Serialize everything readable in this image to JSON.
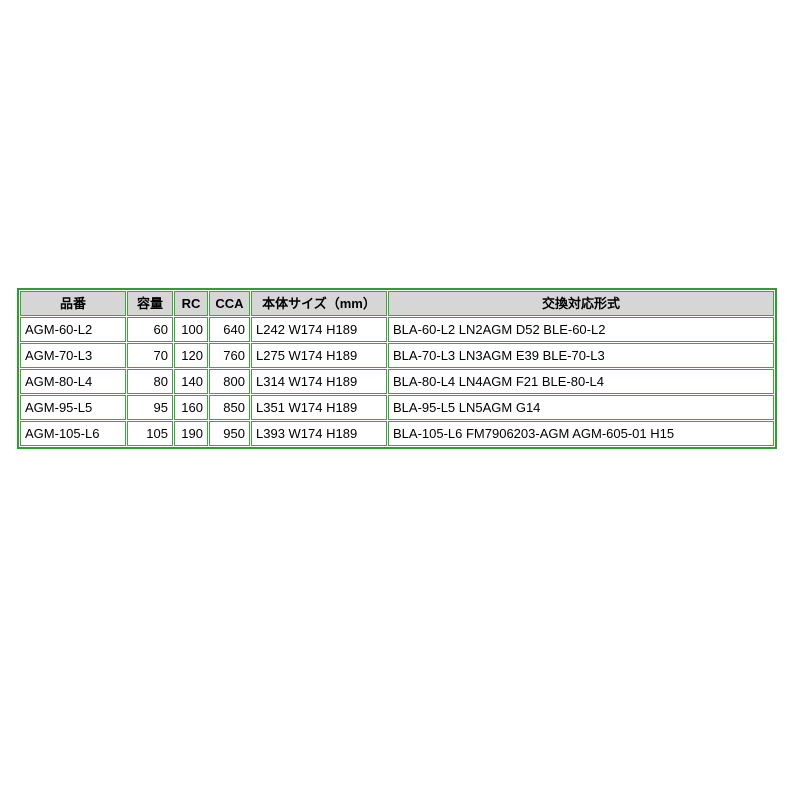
{
  "colors": {
    "border_green_outer": "#2e9e2e",
    "border_green_inner": "#3fa63f",
    "header_bg": "#d6d6d6",
    "text": "#000000",
    "page_bg": "#ffffff"
  },
  "table": {
    "columns": [
      {
        "key": "hinban",
        "label": "品番"
      },
      {
        "key": "capacity",
        "label": "容量"
      },
      {
        "key": "rc",
        "label": "RC"
      },
      {
        "key": "cca",
        "label": "CCA"
      },
      {
        "key": "size",
        "label": "本体サイズ（mm）"
      },
      {
        "key": "compat",
        "label": "交換対応形式"
      }
    ],
    "rows": [
      [
        "AGM-60-L2",
        "60",
        "100",
        "640",
        "L242 W174 H189",
        "BLA-60-L2 LN2AGM D52 BLE-60-L2"
      ],
      [
        "AGM-70-L3",
        "70",
        "120",
        "760",
        "L275 W174 H189",
        "BLA-70-L3 LN3AGM E39 BLE-70-L3"
      ],
      [
        "AGM-80-L4",
        "80",
        "140",
        "800",
        "L314 W174 H189",
        "BLA-80-L4 LN4AGM F21 BLE-80-L4"
      ],
      [
        "AGM-95-L5",
        "95",
        "160",
        "850",
        "L351 W174 H189",
        "BLA-95-L5 LN5AGM G14"
      ],
      [
        "AGM-105-L6",
        "105",
        "190",
        "950",
        "L393 W174 H189",
        "BLA-105-L6 FM7906203-AGM AGM-605-01 H15"
      ]
    ]
  }
}
